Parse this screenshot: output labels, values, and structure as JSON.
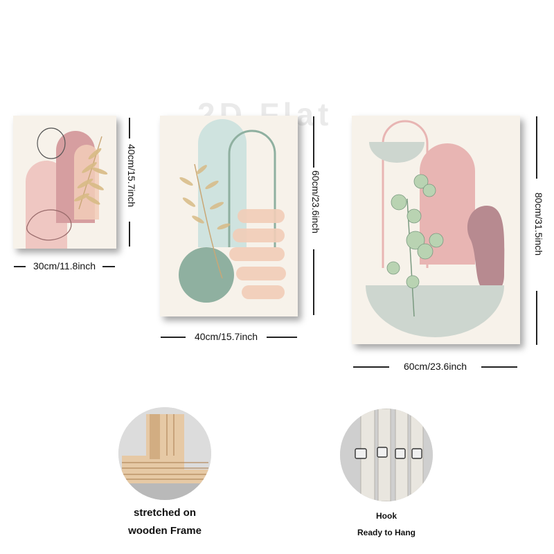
{
  "watermark": "2D Flat",
  "paintings": [
    {
      "width_label": "30cm/11.8inch",
      "height_label": "40cm/15.7inch"
    },
    {
      "width_label": "40cm/15.7inch",
      "height_label": "60cm/23.6inch"
    },
    {
      "width_label": "60cm/23.6inch",
      "height_label": "80cm/31.5inch"
    }
  ],
  "details": {
    "frame": {
      "line1": "stretched on",
      "line2": "wooden Frame"
    },
    "hook": {
      "line1": "Hook",
      "line2": "Ready to Hang"
    }
  },
  "colors": {
    "canvas": "#f7f2ea",
    "blush": "#e8b5b3",
    "mauve": "#c9959a",
    "sage": "#8fb0a0",
    "mint": "#cfe3df",
    "peach": "#f2cdb8",
    "gold": "#c9a776"
  }
}
